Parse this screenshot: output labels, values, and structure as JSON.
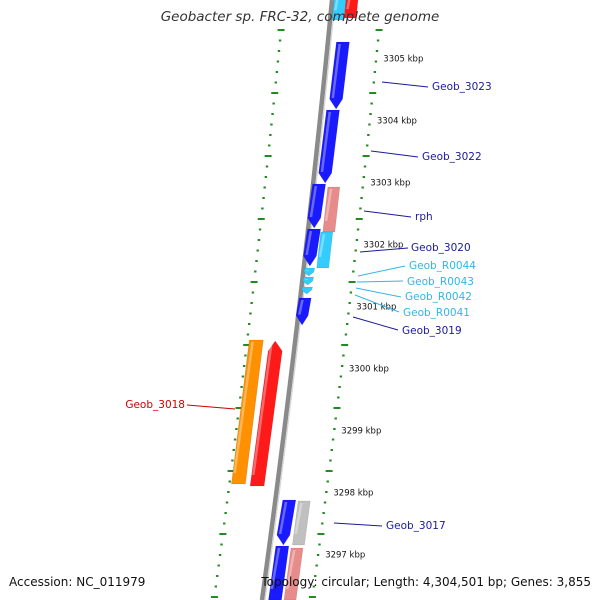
{
  "title": "Geobacter sp. FRC-32, complete genome",
  "accession_label": "Accession: NC_011979",
  "topology_label": "Topology: circular; Length: 4,304,501 bp; Genes: 3,855",
  "colors": {
    "backbone": "#8a8a8a",
    "ruler": "#228b22",
    "cds_forward": "#1a1aff",
    "pseudo_forward": "#e88b8b",
    "trna": "#33ccff",
    "cds_reverse": "#ff1a1a",
    "other_reverse": "#ff9000",
    "misc": "#c0c0c0",
    "label_blue": "#1a1a9a",
    "label_cyan": "#33b5e5",
    "label_red": "#cc0000"
  },
  "ruler_ticks": [
    {
      "label": "3305 kbp"
    },
    {
      "label": "3304 kbp"
    },
    {
      "label": "3303 kbp"
    },
    {
      "label": "3302 kbp"
    },
    {
      "label": "3301 kbp"
    },
    {
      "label": "3300 kbp"
    },
    {
      "label": "3299 kbp"
    },
    {
      "label": "3298 kbp"
    },
    {
      "label": "3297 kbp"
    }
  ],
  "gene_labels": [
    {
      "name": "Geob_3023",
      "kind": "forward_cds"
    },
    {
      "name": "Geob_3022",
      "kind": "forward_cds"
    },
    {
      "name": "rph",
      "kind": "forward_cds"
    },
    {
      "name": "Geob_3020",
      "kind": "forward_cds"
    },
    {
      "name": "Geob_R0044",
      "kind": "trna"
    },
    {
      "name": "Geob_R0043",
      "kind": "trna"
    },
    {
      "name": "Geob_R0042",
      "kind": "trna"
    },
    {
      "name": "Geob_R0041",
      "kind": "trna"
    },
    {
      "name": "Geob_3019",
      "kind": "forward_cds"
    },
    {
      "name": "Geob_3018",
      "kind": "reverse_cds"
    },
    {
      "name": "Geob_3017",
      "kind": "forward_cds"
    }
  ]
}
